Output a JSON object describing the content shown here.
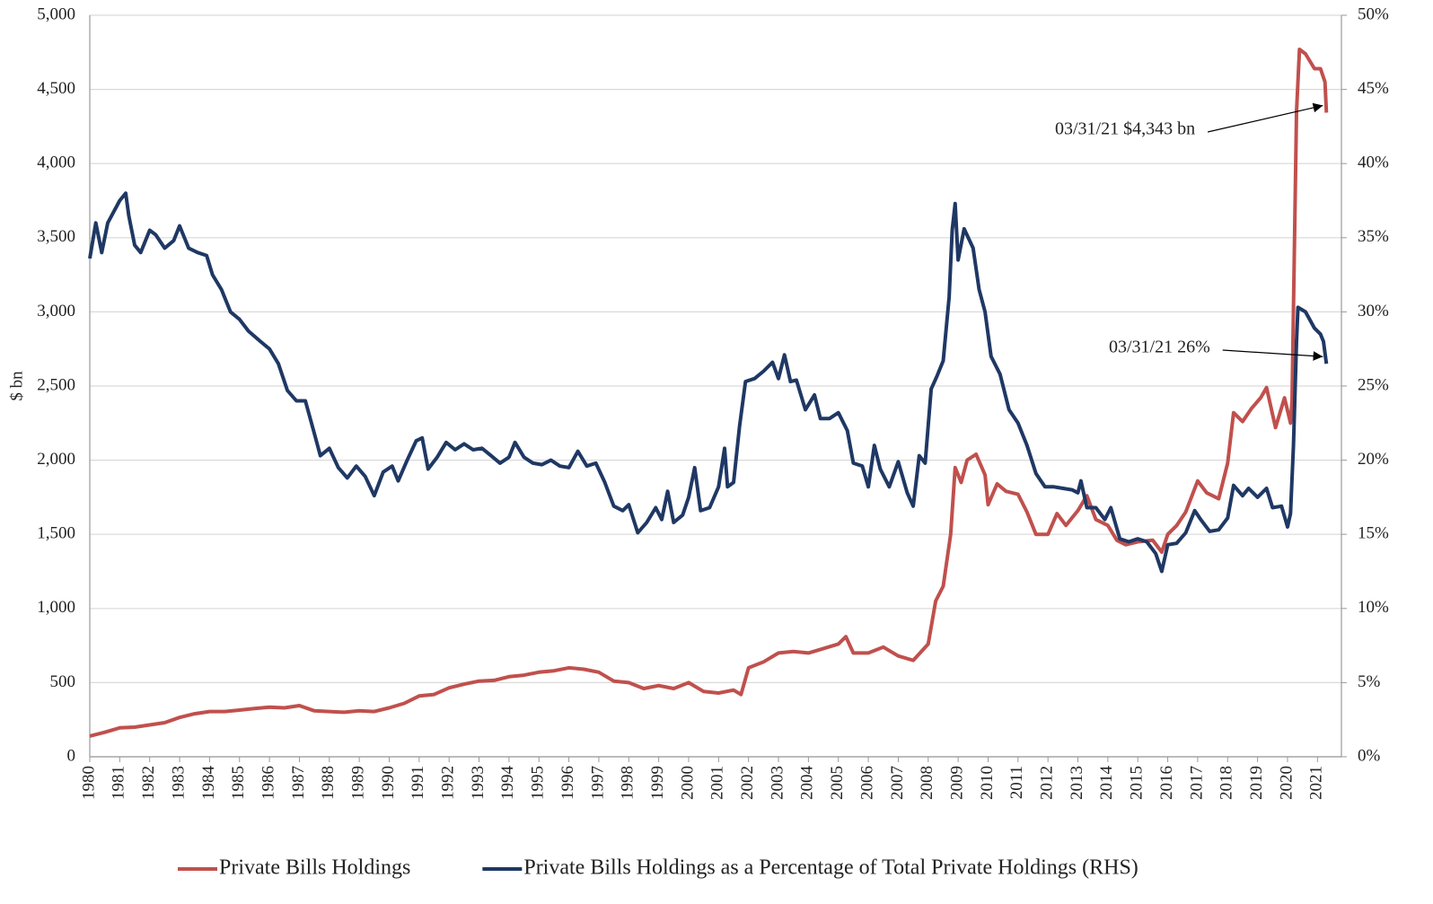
{
  "chart_data": {
    "type": "line",
    "y_label": "$ bn",
    "xlim": [
      1980,
      2021.8
    ],
    "xticks": [
      1980,
      1981,
      1982,
      1983,
      1984,
      1985,
      1986,
      1987,
      1988,
      1989,
      1990,
      1991,
      1992,
      1993,
      1994,
      1995,
      1996,
      1997,
      1998,
      1999,
      2000,
      2001,
      2002,
      2003,
      2004,
      2005,
      2006,
      2007,
      2008,
      2009,
      2010,
      2011,
      2012,
      2013,
      2014,
      2015,
      2016,
      2017,
      2018,
      2019,
      2020,
      2021
    ],
    "ylim": [
      0,
      5000
    ],
    "yticks": [
      0,
      500,
      {
        "value": 1000,
        "label": "1,000"
      },
      {
        "value": 1500,
        "label": "1,500"
      },
      {
        "value": 2000,
        "label": "2,000"
      },
      {
        "value": 2500,
        "label": "2,500"
      },
      {
        "value": 3000,
        "label": "3,000"
      },
      {
        "value": 3500,
        "label": "3,500"
      },
      {
        "value": 4000,
        "label": "4,000"
      },
      {
        "value": 4500,
        "label": "4,500"
      },
      {
        "value": 5000,
        "label": "5,000"
      }
    ],
    "y2lim": [
      0,
      50
    ],
    "y2ticks": [
      {
        "value": 0,
        "label": "0%"
      },
      {
        "value": 5,
        "label": "5%"
      },
      {
        "value": 10,
        "label": "10%"
      },
      {
        "value": 15,
        "label": "15%"
      },
      {
        "value": 20,
        "label": "20%"
      },
      {
        "value": 25,
        "label": "25%"
      },
      {
        "value": 30,
        "label": "30%"
      },
      {
        "value": 35,
        "label": "35%"
      },
      {
        "value": 40,
        "label": "40%"
      },
      {
        "value": 45,
        "label": "45%"
      },
      {
        "value": 50,
        "label": "50%"
      }
    ],
    "grid": true,
    "legend": "bottom",
    "annotations": [
      "03/31/21   $4,343 bn",
      "03/31/21  26%"
    ],
    "series": [
      {
        "name": "Private Bills Holdings",
        "color": "#c0504d",
        "x": [
          1980.0,
          1980.5,
          1981.0,
          1981.5,
          1982.0,
          1982.5,
          1983.0,
          1983.5,
          1984.0,
          1984.5,
          1985.0,
          1985.5,
          1986.0,
          1986.5,
          1987.0,
          1987.5,
          1988.0,
          1988.5,
          1989.0,
          1989.5,
          1990.0,
          1990.5,
          1991.0,
          1991.5,
          1992.0,
          1992.5,
          1993.0,
          1993.5,
          1994.0,
          1994.5,
          1995.0,
          1995.5,
          1996.0,
          1996.5,
          1997.0,
          1997.5,
          1998.0,
          1998.5,
          1999.0,
          1999.5,
          2000.0,
          2000.5,
          2001.0,
          2001.5,
          2001.75,
          2002.0,
          2002.5,
          2003.0,
          2003.5,
          2004.0,
          2004.5,
          2005.0,
          2005.25,
          2005.5,
          2006.0,
          2006.5,
          2007.0,
          2007.5,
          2008.0,
          2008.25,
          2008.5,
          2008.75,
          2008.9,
          2009.1,
          2009.3,
          2009.6,
          2009.9,
          2010.0,
          2010.3,
          2010.6,
          2011.0,
          2011.3,
          2011.6,
          2012.0,
          2012.3,
          2012.6,
          2013.0,
          2013.3,
          2013.6,
          2014.0,
          2014.3,
          2014.6,
          2015.0,
          2015.5,
          2015.8,
          2016.0,
          2016.3,
          2016.6,
          2017.0,
          2017.3,
          2017.7,
          2018.0,
          2018.2,
          2018.5,
          2018.8,
          2019.1,
          2019.3,
          2019.6,
          2019.9,
          2020.1,
          2020.15,
          2020.3,
          2020.4,
          2020.6,
          2020.9,
          2021.1,
          2021.25,
          2021.3
        ],
        "values": [
          140,
          165,
          195,
          200,
          215,
          230,
          265,
          290,
          305,
          305,
          315,
          325,
          335,
          330,
          345,
          310,
          305,
          300,
          310,
          305,
          330,
          360,
          410,
          420,
          465,
          490,
          510,
          515,
          540,
          550,
          570,
          580,
          600,
          590,
          570,
          510,
          500,
          460,
          480,
          460,
          500,
          440,
          430,
          450,
          420,
          600,
          640,
          700,
          710,
          700,
          730,
          760,
          810,
          700,
          700,
          740,
          680,
          650,
          760,
          1050,
          1150,
          1500,
          1950,
          1850,
          2000,
          2040,
          1900,
          1700,
          1840,
          1790,
          1770,
          1650,
          1500,
          1500,
          1640,
          1560,
          1660,
          1760,
          1600,
          1560,
          1460,
          1430,
          1450,
          1460,
          1380,
          1500,
          1560,
          1650,
          1860,
          1780,
          1740,
          1980,
          2320,
          2260,
          2350,
          2420,
          2490,
          2220,
          2420,
          2250,
          2400,
          4350,
          4770,
          4740,
          4640,
          4640,
          4550,
          4343
        ]
      },
      {
        "name": "Private Bills Holdings as a Percentage of Total Private Holdings (RHS)",
        "color": "#1f3864",
        "axis": "y2",
        "x": [
          1980.0,
          1980.2,
          1980.4,
          1980.6,
          1981.0,
          1981.2,
          1981.3,
          1981.5,
          1981.7,
          1982.0,
          1982.2,
          1982.5,
          1982.8,
          1983.0,
          1983.3,
          1983.6,
          1983.9,
          1984.1,
          1984.4,
          1984.7,
          1985.0,
          1985.3,
          1985.7,
          1986.0,
          1986.3,
          1986.6,
          1986.9,
          1987.2,
          1987.5,
          1987.7,
          1988.0,
          1988.3,
          1988.6,
          1988.9,
          1989.2,
          1989.5,
          1989.8,
          1990.1,
          1990.3,
          1990.6,
          1990.9,
          1991.1,
          1991.3,
          1991.6,
          1991.9,
          1992.2,
          1992.5,
          1992.8,
          1993.1,
          1993.4,
          1993.7,
          1994.0,
          1994.2,
          1994.5,
          1994.8,
          1995.1,
          1995.4,
          1995.7,
          1996.0,
          1996.3,
          1996.6,
          1996.9,
          1997.2,
          1997.5,
          1997.8,
          1998.0,
          1998.3,
          1998.6,
          1998.9,
          1999.1,
          1999.3,
          1999.5,
          1999.8,
          2000.0,
          2000.2,
          2000.4,
          2000.7,
          2001.0,
          2001.2,
          2001.3,
          2001.5,
          2001.7,
          2001.9,
          2002.2,
          2002.5,
          2002.8,
          2003.0,
          2003.2,
          2003.4,
          2003.6,
          2003.9,
          2004.2,
          2004.4,
          2004.7,
          2005.0,
          2005.3,
          2005.5,
          2005.8,
          2006.0,
          2006.2,
          2006.4,
          2006.7,
          2007.0,
          2007.3,
          2007.5,
          2007.7,
          2007.9,
          2008.1,
          2008.3,
          2008.5,
          2008.7,
          2008.8,
          2008.9,
          2009.0,
          2009.2,
          2009.5,
          2009.7,
          2009.9,
          2010.1,
          2010.4,
          2010.7,
          2011.0,
          2011.3,
          2011.6,
          2011.9,
          2012.2,
          2012.5,
          2012.8,
          2013.0,
          2013.1,
          2013.3,
          2013.6,
          2013.9,
          2014.1,
          2014.4,
          2014.7,
          2015.0,
          2015.3,
          2015.6,
          2015.8,
          2016.0,
          2016.3,
          2016.6,
          2016.9,
          2017.1,
          2017.4,
          2017.7,
          2018.0,
          2018.2,
          2018.5,
          2018.7,
          2019.0,
          2019.3,
          2019.5,
          2019.8,
          2020.0,
          2020.1,
          2020.2,
          2020.3,
          2020.35,
          2020.6,
          2020.9,
          2021.1,
          2021.2,
          2021.3
        ],
        "values": [
          33.6,
          36,
          34,
          36,
          37.5,
          38.0,
          36.5,
          34.5,
          34.0,
          35.5,
          35.2,
          34.3,
          34.8,
          35.8,
          34.3,
          34.0,
          33.8,
          32.5,
          31.5,
          30.0,
          29.5,
          28.7,
          28.0,
          27.5,
          26.5,
          24.7,
          24.0,
          24.0,
          21.8,
          20.3,
          20.8,
          19.5,
          18.8,
          19.6,
          18.9,
          17.6,
          19.2,
          19.6,
          18.6,
          20.0,
          21.3,
          21.5,
          19.4,
          20.2,
          21.2,
          20.7,
          21.1,
          20.7,
          20.8,
          20.3,
          19.8,
          20.2,
          21.2,
          20.2,
          19.8,
          19.7,
          20.0,
          19.6,
          19.5,
          20.6,
          19.6,
          19.8,
          18.5,
          16.9,
          16.6,
          17.0,
          15.1,
          15.8,
          16.8,
          16.0,
          17.9,
          15.8,
          16.3,
          17.5,
          19.5,
          16.6,
          16.8,
          18.2,
          20.8,
          18.2,
          18.5,
          22.3,
          25.3,
          25.5,
          26.0,
          26.6,
          25.5,
          27.1,
          25.3,
          25.4,
          23.4,
          24.4,
          22.8,
          22.8,
          23.2,
          22.0,
          19.8,
          19.6,
          18.2,
          21.0,
          19.4,
          18.2,
          19.9,
          17.8,
          16.9,
          20.3,
          19.8,
          24.8,
          25.7,
          26.7,
          31.0,
          35.5,
          37.3,
          33.5,
          35.6,
          34.3,
          31.5,
          30.0,
          27.0,
          25.8,
          23.4,
          22.5,
          21.0,
          19.1,
          18.2,
          18.2,
          18.1,
          18.0,
          17.8,
          18.6,
          16.8,
          16.8,
          16.0,
          16.8,
          14.7,
          14.5,
          14.7,
          14.5,
          13.7,
          12.5,
          14.3,
          14.4,
          15.1,
          16.6,
          16.0,
          15.2,
          15.3,
          16.1,
          18.3,
          17.6,
          18.1,
          17.5,
          18.1,
          16.8,
          16.9,
          15.5,
          16.4,
          21.0,
          28.0,
          30.3,
          30.0,
          28.9,
          28.5,
          28.0,
          26.5
        ]
      }
    ]
  }
}
